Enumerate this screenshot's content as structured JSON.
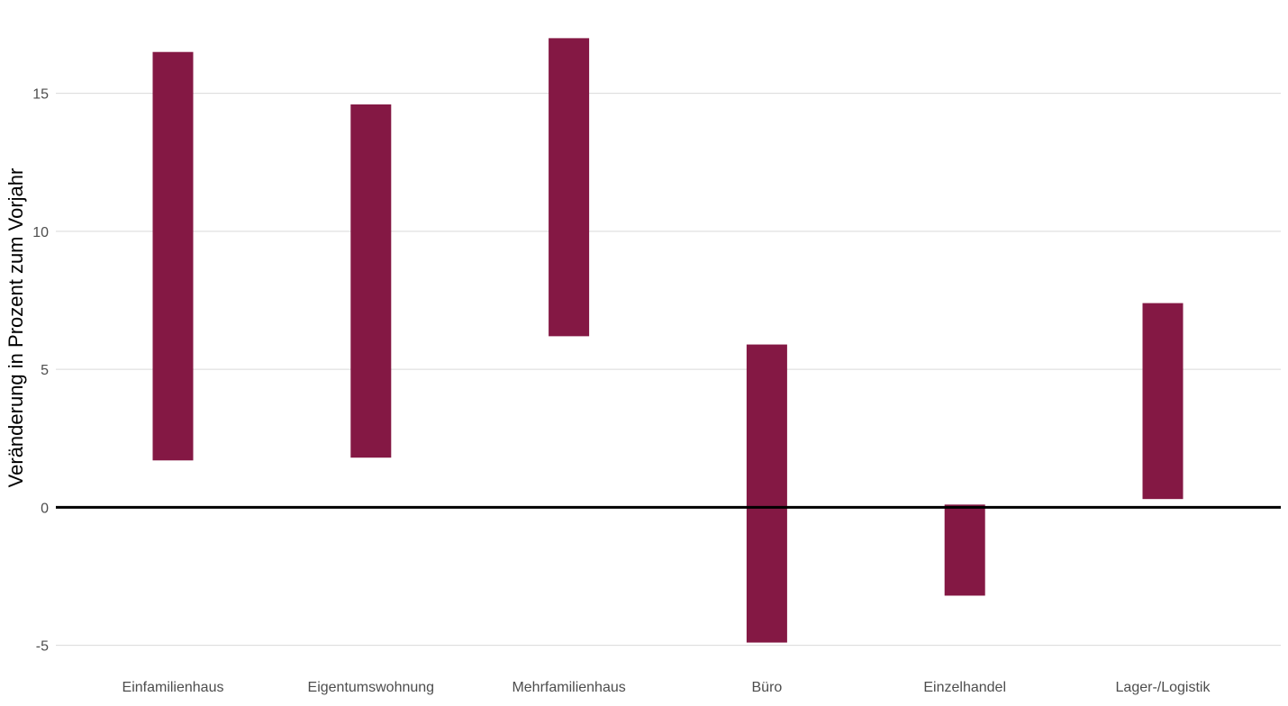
{
  "chart_data": {
    "type": "bar",
    "subtype": "floating-range",
    "title": "",
    "xlabel": "",
    "ylabel": "Veränderung in Prozent zum Vorjahr",
    "categories": [
      "Einfamilienhaus",
      "Eigentumswohnung",
      "Mehrfamilienhaus",
      "Büro",
      "Einzelhandel",
      "Lager-/Logistik"
    ],
    "ranges": [
      {
        "low": 1.7,
        "high": 16.5
      },
      {
        "low": 1.8,
        "high": 14.6
      },
      {
        "low": 6.2,
        "high": 17.0
      },
      {
        "low": -4.9,
        "high": 5.9
      },
      {
        "low": -3.2,
        "high": 0.1
      },
      {
        "low": 0.3,
        "high": 7.4
      }
    ],
    "yticks": [
      -5,
      0,
      5,
      10,
      15
    ],
    "ytick_labels": [
      "-5",
      "0",
      "5",
      "10",
      "15"
    ],
    "ylim": [
      -5.6,
      17.6
    ],
    "grid": true,
    "reference_line": 0,
    "bar_color": "#841844",
    "zero_line_color": "#000000",
    "grid_color": "#d9d9d9"
  }
}
